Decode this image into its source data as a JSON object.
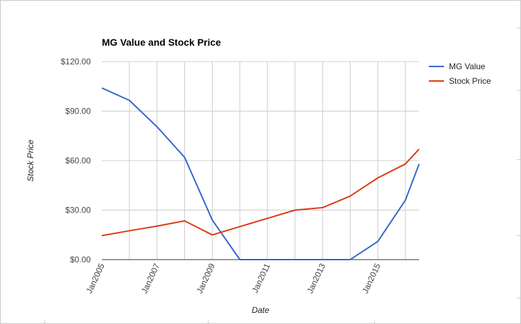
{
  "chart_data": {
    "type": "line",
    "title": "MG Value and Stock Price",
    "xlabel": "Date",
    "ylabel": "Stock Price",
    "ylim": [
      0,
      120
    ],
    "xlim": [
      "2005-01-01",
      "2016-07-01"
    ],
    "yticks": [
      "$0.00",
      "$30.00",
      "$60.00",
      "$90.00",
      "$120.00"
    ],
    "xticks": [
      "Jan2005",
      "Jan2007",
      "Jan2009",
      "Jan2011",
      "Jan2013",
      "Jan2015"
    ],
    "grid": true,
    "legend_position": "right",
    "series": [
      {
        "name": "MG Value",
        "color": "#3366cc",
        "points": [
          [
            "2005-01-01",
            104
          ],
          [
            "2006-01-01",
            96.5
          ],
          [
            "2007-01-01",
            80.5
          ],
          [
            "2008-01-01",
            62
          ],
          [
            "2009-01-01",
            24
          ],
          [
            "2010-01-01",
            0
          ],
          [
            "2011-01-01",
            0
          ],
          [
            "2012-01-01",
            0
          ],
          [
            "2013-01-01",
            0
          ],
          [
            "2014-01-01",
            0
          ],
          [
            "2015-01-01",
            11
          ],
          [
            "2016-01-01",
            36
          ],
          [
            "2016-07-01",
            58
          ]
        ]
      },
      {
        "name": "Stock Price",
        "color": "#dc3912",
        "points": [
          [
            "2005-01-01",
            14.5
          ],
          [
            "2006-01-01",
            17.5
          ],
          [
            "2007-01-01",
            20.3
          ],
          [
            "2008-01-01",
            23.5
          ],
          [
            "2009-01-01",
            15
          ],
          [
            "2010-01-01",
            20
          ],
          [
            "2011-01-01",
            25
          ],
          [
            "2012-01-01",
            30
          ],
          [
            "2013-01-01",
            31.5
          ],
          [
            "2014-01-01",
            38.5
          ],
          [
            "2015-01-01",
            49.5
          ],
          [
            "2016-01-01",
            58
          ],
          [
            "2016-07-01",
            67
          ]
        ]
      }
    ]
  }
}
